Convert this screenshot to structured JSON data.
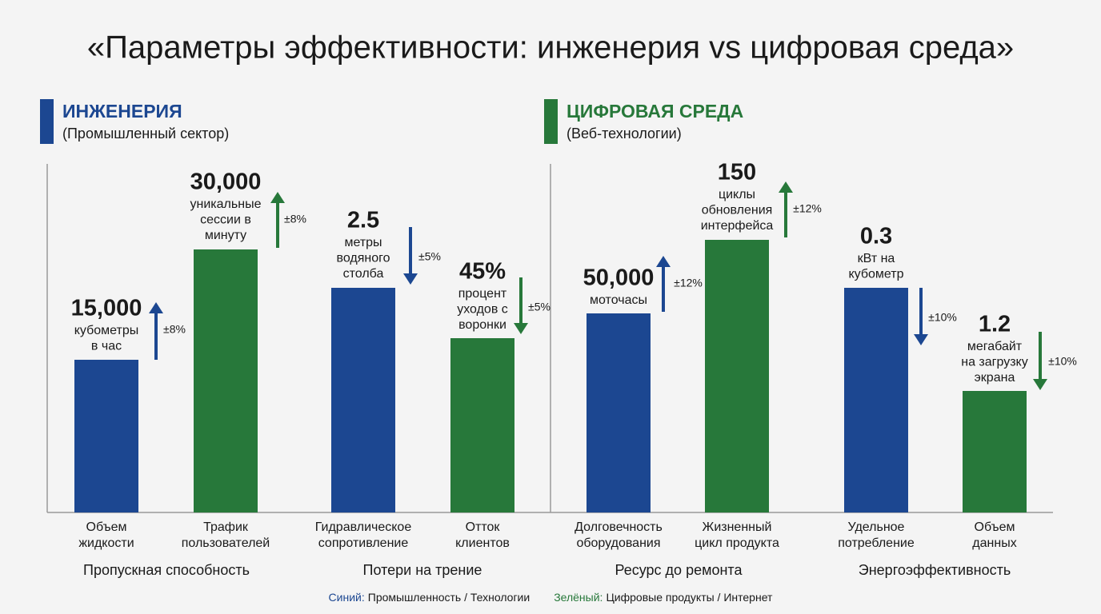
{
  "title": "«Параметры эффективности: инженерия vs цифровая среда»",
  "panels": [
    {
      "heading": "ИНЖЕНЕРИЯ",
      "subheading": "(Промышленный сектор)",
      "color": "#1c4791",
      "groups": [
        {
          "label": "Пропускная способность",
          "items": [
            {
              "value": "15,000",
              "unit": [
                "кубометры",
                "в час"
              ],
              "tolerance": "±8%",
              "direction": "up",
              "category": [
                "Объем",
                "жидкости"
              ],
              "color": "#1c4791"
            },
            {
              "value": "30,000",
              "unit": [
                "уникальные",
                "сессии в",
                "минуту"
              ],
              "tolerance": "±8%",
              "direction": "up",
              "category": [
                "Трафик",
                "пользователей"
              ],
              "color": "#27783a"
            }
          ]
        },
        {
          "label": "Потери на трение",
          "items": [
            {
              "value": "2.5",
              "unit": [
                "метры",
                "водяного",
                "столба"
              ],
              "tolerance": "±5%",
              "direction": "down",
              "category": [
                "Гидравлическое",
                "сопротивление"
              ],
              "color": "#1c4791"
            },
            {
              "value": "45%",
              "unit": [
                "процент",
                "уходов с",
                "воронки"
              ],
              "tolerance": "±5%",
              "direction": "down",
              "category": [
                "Отток",
                "клиентов"
              ],
              "color": "#27783a"
            }
          ]
        }
      ]
    },
    {
      "heading": "ЦИФРОВАЯ СРЕДА",
      "subheading": "(Веб-технологии)",
      "color": "#27783a",
      "groups": [
        {
          "label": "Ресурс до ремонта",
          "items": [
            {
              "value": "50,000",
              "unit": [
                "моточасы"
              ],
              "tolerance": "±12%",
              "direction": "up",
              "category": [
                "Долговечность",
                "оборудования"
              ],
              "color": "#1c4791"
            },
            {
              "value": "150",
              "unit": [
                "циклы",
                "обновления",
                "интерфейса"
              ],
              "tolerance": "±12%",
              "direction": "up",
              "category": [
                "Жизненный",
                "цикл продукта"
              ],
              "color": "#27783a"
            }
          ]
        },
        {
          "label": "Энергоэффективность",
          "items": [
            {
              "value": "0.3",
              "unit": [
                "кВт на",
                "кубометр"
              ],
              "tolerance": "±10%",
              "direction": "down",
              "category": [
                "Удельное",
                "потребление"
              ],
              "color": "#1c4791"
            },
            {
              "value": "1.2",
              "unit": [
                "мегабайт",
                "на загрузку",
                "экрана"
              ],
              "tolerance": "±10%",
              "direction": "down",
              "category": [
                "Объем",
                "данных"
              ],
              "color": "#27783a"
            }
          ]
        }
      ]
    }
  ],
  "legend": [
    {
      "key": "Синий:",
      "text": "Промышленность / Технологии",
      "color": "#1c4791"
    },
    {
      "key": "Зелёный:",
      "text": "Цифровые продукты / Интернет",
      "color": "#27783a"
    }
  ]
}
